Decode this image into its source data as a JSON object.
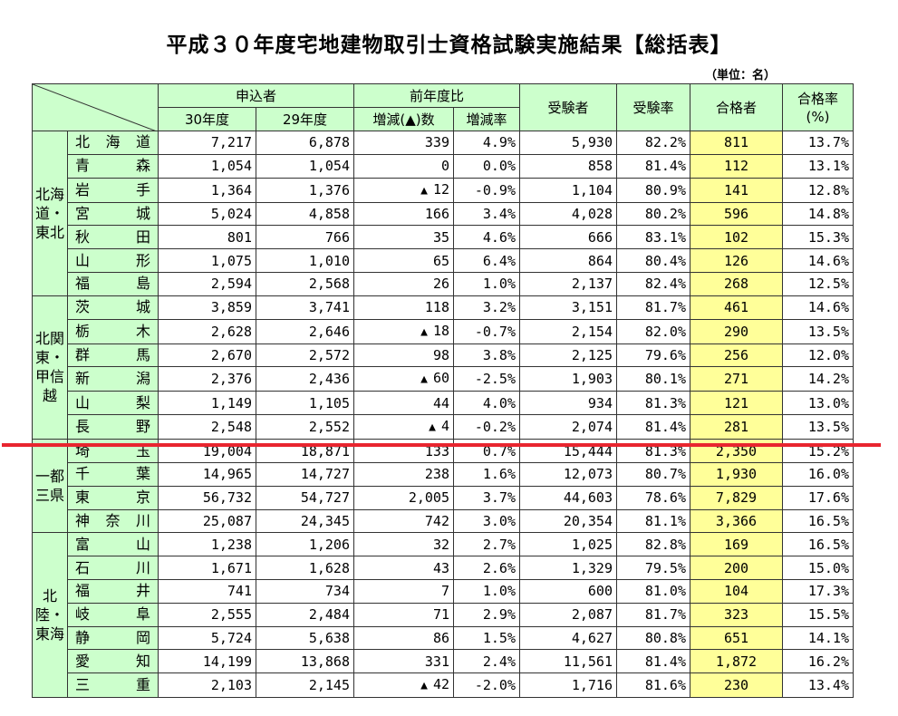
{
  "title": "平成３０年度宅地建物取引士資格試験実施結果【総括表】",
  "unit": "（単位：名）",
  "headers": {
    "apply": "申込者",
    "prev_ratio": "前年度比",
    "examinees": "受験者",
    "exam_rate": "受験率",
    "passers": "合格者",
    "pass_rate": "合格率\n(%)",
    "y30": "30年度",
    "y29": "29年度",
    "diff": "増減(▲)数",
    "diff_rate": "増減率"
  },
  "regions": [
    {
      "label": "北海道・東北",
      "rows": [
        {
          "pref": "北海道",
          "y30": "7,217",
          "y29": "6,878",
          "diff": "339",
          "neg": false,
          "rate": "4.9%",
          "exam": "5,930",
          "exrate": "82.2%",
          "pass": "811",
          "prate": "13.7%"
        },
        {
          "pref": "青森",
          "y30": "1,054",
          "y29": "1,054",
          "diff": "0",
          "neg": false,
          "rate": "0.0%",
          "exam": "858",
          "exrate": "81.4%",
          "pass": "112",
          "prate": "13.1%"
        },
        {
          "pref": "岩手",
          "y30": "1,364",
          "y29": "1,376",
          "diff": "12",
          "neg": true,
          "rate": "-0.9%",
          "exam": "1,104",
          "exrate": "80.9%",
          "pass": "141",
          "prate": "12.8%"
        },
        {
          "pref": "宮城",
          "y30": "5,024",
          "y29": "4,858",
          "diff": "166",
          "neg": false,
          "rate": "3.4%",
          "exam": "4,028",
          "exrate": "80.2%",
          "pass": "596",
          "prate": "14.8%"
        },
        {
          "pref": "秋田",
          "y30": "801",
          "y29": "766",
          "diff": "35",
          "neg": false,
          "rate": "4.6%",
          "exam": "666",
          "exrate": "83.1%",
          "pass": "102",
          "prate": "15.3%"
        },
        {
          "pref": "山形",
          "y30": "1,075",
          "y29": "1,010",
          "diff": "65",
          "neg": false,
          "rate": "6.4%",
          "exam": "864",
          "exrate": "80.4%",
          "pass": "126",
          "prate": "14.6%"
        },
        {
          "pref": "福島",
          "y30": "2,594",
          "y29": "2,568",
          "diff": "26",
          "neg": false,
          "rate": "1.0%",
          "exam": "2,137",
          "exrate": "82.4%",
          "pass": "268",
          "prate": "12.5%"
        }
      ]
    },
    {
      "label": "北関東・甲信越",
      "rows": [
        {
          "pref": "茨城",
          "y30": "3,859",
          "y29": "3,741",
          "diff": "118",
          "neg": false,
          "rate": "3.2%",
          "exam": "3,151",
          "exrate": "81.7%",
          "pass": "461",
          "prate": "14.6%"
        },
        {
          "pref": "栃木",
          "y30": "2,628",
          "y29": "2,646",
          "diff": "18",
          "neg": true,
          "rate": "-0.7%",
          "exam": "2,154",
          "exrate": "82.0%",
          "pass": "290",
          "prate": "13.5%"
        },
        {
          "pref": "群馬",
          "y30": "2,670",
          "y29": "2,572",
          "diff": "98",
          "neg": false,
          "rate": "3.8%",
          "exam": "2,125",
          "exrate": "79.6%",
          "pass": "256",
          "prate": "12.0%"
        },
        {
          "pref": "新潟",
          "y30": "2,376",
          "y29": "2,436",
          "diff": "60",
          "neg": true,
          "rate": "-2.5%",
          "exam": "1,903",
          "exrate": "80.1%",
          "pass": "271",
          "prate": "14.2%"
        },
        {
          "pref": "山梨",
          "y30": "1,149",
          "y29": "1,105",
          "diff": "44",
          "neg": false,
          "rate": "4.0%",
          "exam": "934",
          "exrate": "81.3%",
          "pass": "121",
          "prate": "13.0%"
        },
        {
          "pref": "長野",
          "y30": "2,548",
          "y29": "2,552",
          "diff": "4",
          "neg": true,
          "rate": "-0.2%",
          "exam": "2,074",
          "exrate": "81.4%",
          "pass": "281",
          "prate": "13.5%"
        }
      ]
    },
    {
      "label": "一都三県",
      "rows": [
        {
          "pref": "埼玉",
          "y30": "19,004",
          "y29": "18,871",
          "diff": "133",
          "neg": false,
          "rate": "0.7%",
          "exam": "15,444",
          "exrate": "81.3%",
          "pass": "2,350",
          "prate": "15.2%"
        },
        {
          "pref": "千葉",
          "y30": "14,965",
          "y29": "14,727",
          "diff": "238",
          "neg": false,
          "rate": "1.6%",
          "exam": "12,073",
          "exrate": "80.7%",
          "pass": "1,930",
          "prate": "16.0%"
        },
        {
          "pref": "東京",
          "y30": "56,732",
          "y29": "54,727",
          "diff": "2,005",
          "neg": false,
          "rate": "3.7%",
          "exam": "44,603",
          "exrate": "78.6%",
          "pass": "7,829",
          "prate": "17.6%"
        },
        {
          "pref": "神奈川",
          "y30": "25,087",
          "y29": "24,345",
          "diff": "742",
          "neg": false,
          "rate": "3.0%",
          "exam": "20,354",
          "exrate": "81.1%",
          "pass": "3,366",
          "prate": "16.5%"
        }
      ]
    },
    {
      "label": "北陸・東海",
      "rows": [
        {
          "pref": "富山",
          "y30": "1,238",
          "y29": "1,206",
          "diff": "32",
          "neg": false,
          "rate": "2.7%",
          "exam": "1,025",
          "exrate": "82.8%",
          "pass": "169",
          "prate": "16.5%"
        },
        {
          "pref": "石川",
          "y30": "1,671",
          "y29": "1,628",
          "diff": "43",
          "neg": false,
          "rate": "2.6%",
          "exam": "1,329",
          "exrate": "79.5%",
          "pass": "200",
          "prate": "15.0%"
        },
        {
          "pref": "福井",
          "y30": "741",
          "y29": "734",
          "diff": "7",
          "neg": false,
          "rate": "1.0%",
          "exam": "600",
          "exrate": "81.0%",
          "pass": "104",
          "prate": "17.3%"
        },
        {
          "pref": "岐阜",
          "y30": "2,555",
          "y29": "2,484",
          "diff": "71",
          "neg": false,
          "rate": "2.9%",
          "exam": "2,087",
          "exrate": "81.7%",
          "pass": "323",
          "prate": "15.5%"
        },
        {
          "pref": "静岡",
          "y30": "5,724",
          "y29": "5,638",
          "diff": "86",
          "neg": false,
          "rate": "1.5%",
          "exam": "4,627",
          "exrate": "80.8%",
          "pass": "651",
          "prate": "14.1%"
        },
        {
          "pref": "愛知",
          "y30": "14,199",
          "y29": "13,868",
          "diff": "331",
          "neg": false,
          "rate": "2.4%",
          "exam": "11,561",
          "exrate": "81.4%",
          "pass": "1,872",
          "prate": "16.2%"
        },
        {
          "pref": "三重",
          "y30": "2,103",
          "y29": "2,145",
          "diff": "42",
          "neg": true,
          "rate": "-2.0%",
          "exam": "1,716",
          "exrate": "81.6%",
          "pass": "230",
          "prate": "13.4%"
        }
      ]
    }
  ],
  "colors": {
    "header_bg": "#ccffcc",
    "pass_bg": "#ffff99",
    "red_line": "#e8252f"
  }
}
